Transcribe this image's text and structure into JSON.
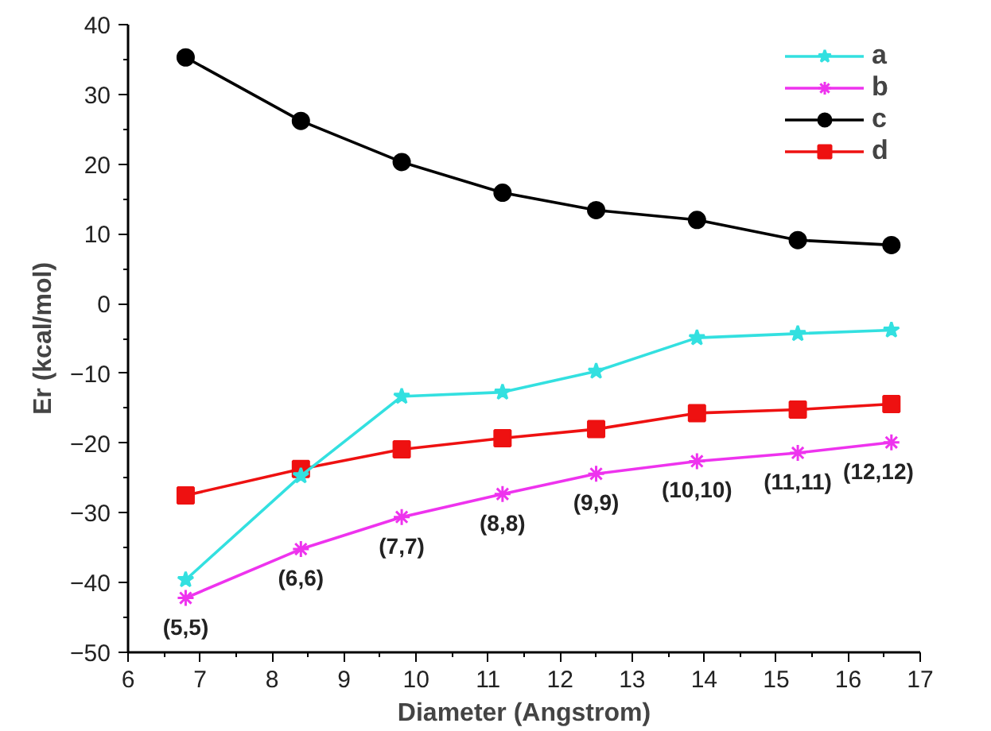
{
  "chart_data": {
    "type": "line",
    "xlabel": "Diameter (Angstrom)",
    "ylabel": "Er (kcal/mol)",
    "x": [
      6.8,
      8.4,
      9.8,
      11.2,
      12.5,
      13.9,
      15.3,
      16.6
    ],
    "series": [
      {
        "name": "a",
        "color": "#33e0e0",
        "marker": "star",
        "values": [
          -39.6,
          -24.7,
          -13.3,
          -12.7,
          -9.7,
          -4.9,
          -4.3,
          -3.8
        ]
      },
      {
        "name": "b",
        "color": "#ee33ee",
        "marker": "cross",
        "values": [
          -42.2,
          -35.2,
          -30.6,
          -27.3,
          -24.4,
          -22.6,
          -21.4,
          -19.9
        ]
      },
      {
        "name": "c",
        "color": "#000000",
        "marker": "circle",
        "values": [
          35.3,
          26.2,
          20.3,
          15.9,
          13.4,
          12.0,
          9.1,
          8.4
        ]
      },
      {
        "name": "d",
        "color": "#ee1111",
        "marker": "square",
        "values": [
          -27.5,
          -23.7,
          -20.9,
          -19.3,
          -18.0,
          -15.7,
          -15.2,
          -14.4
        ]
      }
    ],
    "annotations": [
      {
        "text": "(5,5)",
        "x": 6.8,
        "y": -42.2
      },
      {
        "text": "(6,6)",
        "x": 8.4,
        "y": -35.2
      },
      {
        "text": "(7,7)",
        "x": 9.8,
        "y": -30.6
      },
      {
        "text": "(8,8)",
        "x": 11.2,
        "y": -27.3
      },
      {
        "text": "(9,9)",
        "x": 12.5,
        "y": -24.4
      },
      {
        "text": "(10,10)",
        "x": 13.9,
        "y": -22.6
      },
      {
        "text": "(11,11)",
        "x": 15.3,
        "y": -21.4
      },
      {
        "text": "(12,12)",
        "x": 16.6,
        "y": -19.9
      }
    ],
    "xlim": [
      6,
      17
    ],
    "ylim": [
      -50,
      40
    ],
    "xticks": [
      6,
      7,
      8,
      9,
      10,
      11,
      12,
      13,
      14,
      15,
      16,
      17
    ],
    "yticks": [
      -50,
      -40,
      -30,
      -20,
      -10,
      0,
      10,
      20,
      30,
      40
    ],
    "grid": false,
    "legend": "top right",
    "line_style": "solid"
  }
}
